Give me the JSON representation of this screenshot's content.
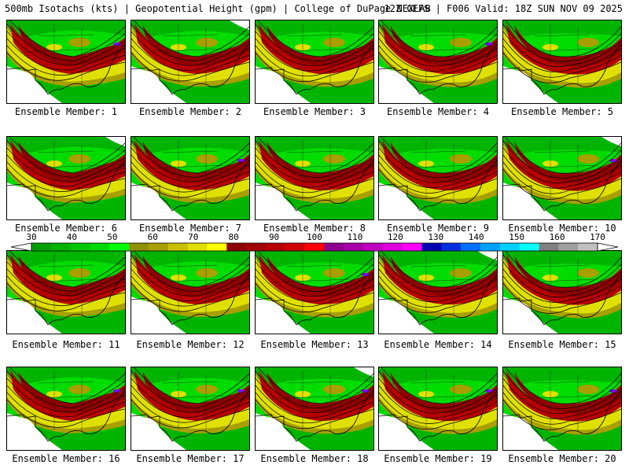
{
  "title": {
    "left": "500mb Isotachs (kts) | Geopotential Height (gpm) | College of DuPage NEXLAB",
    "right": "12Z GEFS | F006 Valid: 18Z SUN NOV 09 2025"
  },
  "members": [
    "Ensemble Member: 1",
    "Ensemble Member: 2",
    "Ensemble Member: 3",
    "Ensemble Member: 4",
    "Ensemble Member: 5",
    "Ensemble Member: 6",
    "Ensemble Member: 7",
    "Ensemble Member: 8",
    "Ensemble Member: 9",
    "Ensemble Member: 10",
    "Ensemble Member: 11",
    "Ensemble Member: 12",
    "Ensemble Member: 13",
    "Ensemble Member: 14",
    "Ensemble Member: 15",
    "Ensemble Member: 16",
    "Ensemble Member: 17",
    "Ensemble Member: 18",
    "Ensemble Member: 19",
    "Ensemble Member: 20"
  ],
  "colorbar": {
    "labels": [
      "30",
      "40",
      "50",
      "60",
      "70",
      "80",
      "90",
      "100",
      "110",
      "120",
      "130",
      "140",
      "150",
      "160",
      "170"
    ],
    "colors": [
      "#00a000",
      "#00b400",
      "#00c800",
      "#00dc00",
      "#00ff00",
      "#909000",
      "#a8a000",
      "#c8c000",
      "#e0e000",
      "#ffff00",
      "#900000",
      "#a00000",
      "#b80000",
      "#d00000",
      "#ff0000",
      "#900090",
      "#a800a8",
      "#c000c0",
      "#e000e0",
      "#ff00ff",
      "#0000b0",
      "#0030e0",
      "#0070ff",
      "#00a0ff",
      "#00d0ff",
      "#00ffff",
      "#808080",
      "#a0a0a0",
      "#c0c0c0"
    ]
  },
  "field_colors": {
    "light_green": "#00dc00",
    "green": "#00b400",
    "olive": "#a8a000",
    "yellow": "#e0e000",
    "red": "#b80000",
    "dark_red": "#900000",
    "purple": "#8000ff"
  }
}
